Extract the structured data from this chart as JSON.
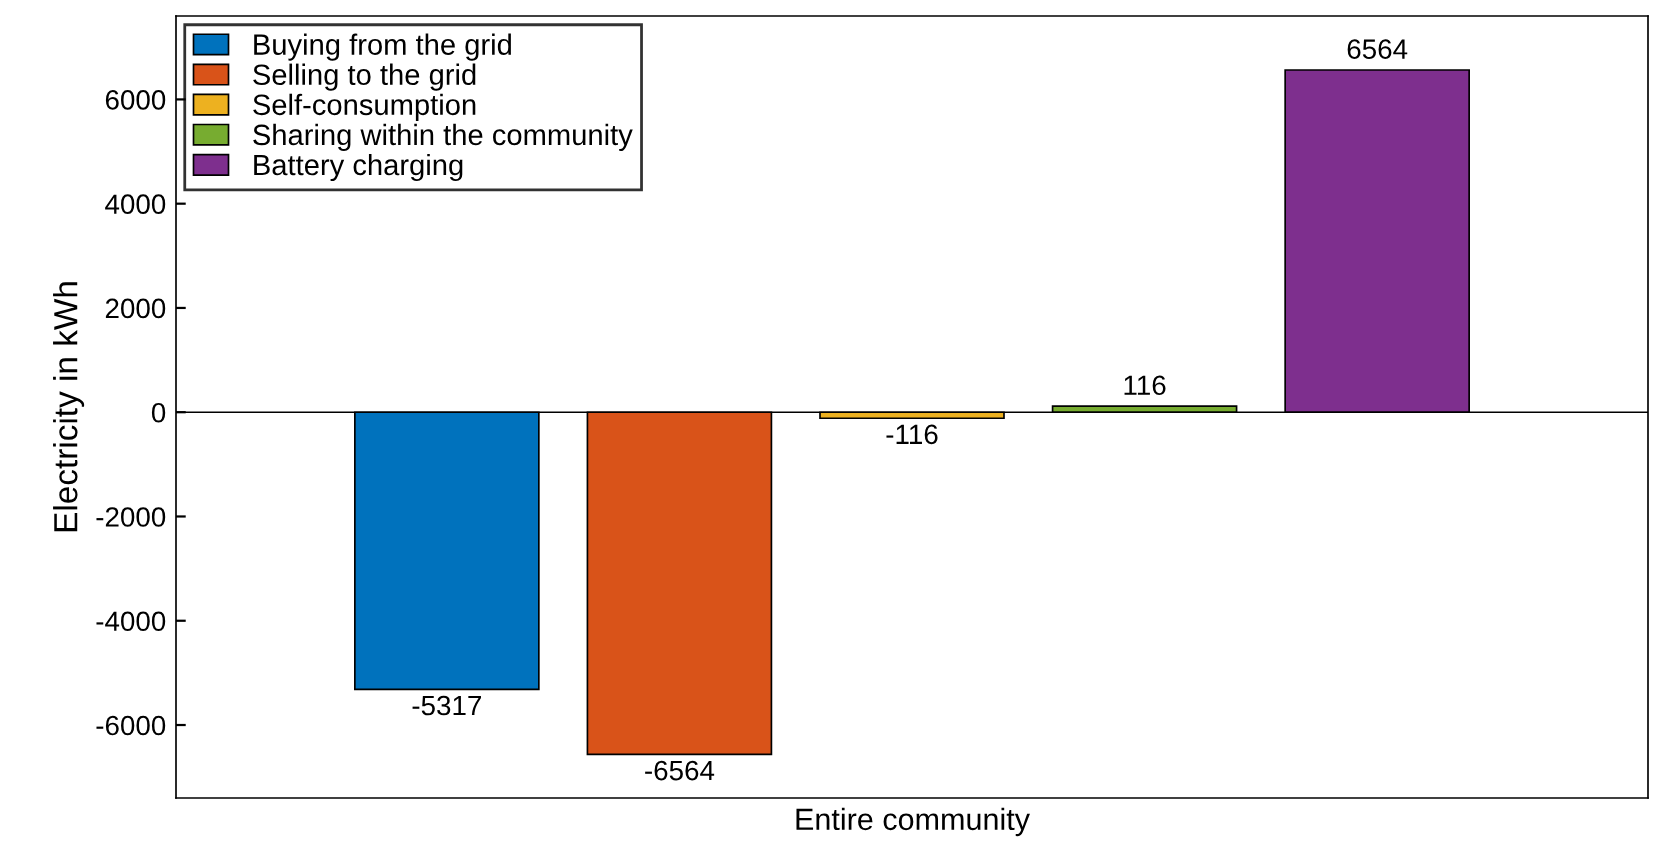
{
  "chart_data": {
    "type": "bar",
    "ylabel": "Electricity in kWh",
    "categories": [
      "Entire community"
    ],
    "series": [
      {
        "name": "Buying from the grid",
        "color": "#0072bd",
        "values": [
          -5317
        ]
      },
      {
        "name": "Selling to the grid",
        "color": "#d95319",
        "values": [
          -6564
        ]
      },
      {
        "name": "Self-consumption",
        "color": "#edb120",
        "values": [
          -116
        ]
      },
      {
        "name": "Sharing within the community",
        "color": "#77ac30",
        "values": [
          116
        ]
      },
      {
        "name": "Battery charging",
        "color": "#7e2f8e",
        "values": [
          6564
        ]
      }
    ],
    "ylim": [
      -7400,
      7600
    ],
    "yticks": [
      -6000,
      -4000,
      -2000,
      0,
      2000,
      4000,
      6000
    ],
    "ref_lines": [
      {
        "axis": "y",
        "value": 0,
        "color": "#000000"
      }
    ],
    "data_labels": true,
    "legend": "top left",
    "grid": false
  }
}
